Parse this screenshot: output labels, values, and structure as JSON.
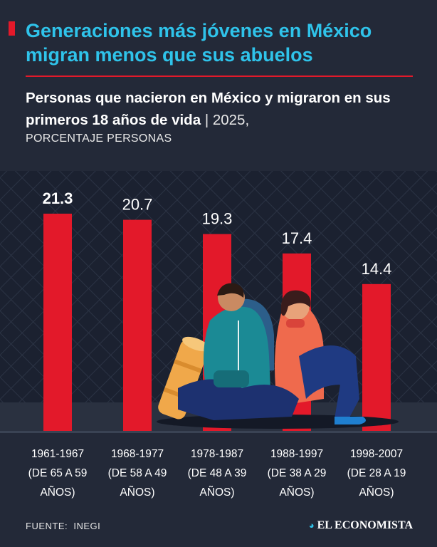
{
  "chart_data": {
    "type": "bar",
    "title": "Generaciones más jóvenes en México migran menos que sus abuelos",
    "subtitle": "Personas que nacieron en México y migraron en sus primeros 18 años de vida",
    "subtitle_note": "| 2025,",
    "unit_label": "PORCENTAJE PERSONAS",
    "categories": [
      "1961-1967",
      "1968-1977",
      "1978-1987",
      "1988-1997",
      "1998-2007"
    ],
    "age_ranges": [
      "(DE 65 A 59 AÑOS)",
      "(DE 58 A 49 AÑOS)",
      "(DE 48 A 39 AÑOS)",
      "(DE 38 A 29 AÑOS)",
      "(DE 28 A 19 AÑOS)"
    ],
    "values": [
      21.3,
      20.7,
      19.3,
      17.4,
      14.4
    ],
    "color": "#e3192a",
    "source_label": "FUENTE:",
    "source": "INEGI",
    "brand": "EL ECONOMISTA"
  }
}
